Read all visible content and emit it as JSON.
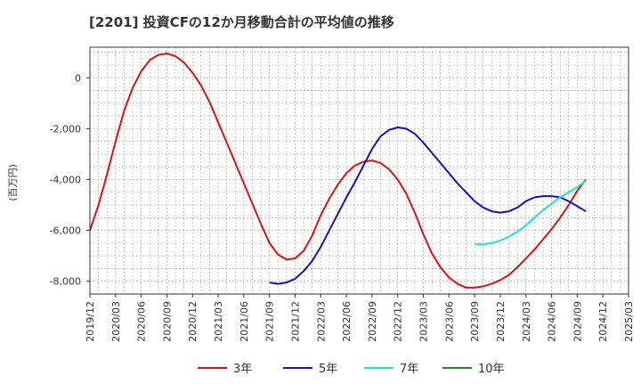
{
  "chart_data": {
    "type": "line",
    "title": "[2201]  投資CFの12か月移動合計の平均値の推移",
    "ylabel": "(百万円)",
    "xlabel": "",
    "ylim": [
      -8500,
      1200
    ],
    "yticks": [
      0,
      -2000,
      -4000,
      -6000,
      -8000
    ],
    "ytick_labels": [
      "0",
      "-2,000",
      "-4,000",
      "-6,000",
      "-8,000"
    ],
    "xlim": [
      "2019-12",
      "2025-03"
    ],
    "xtick_labels": [
      "2019/12",
      "2020/03",
      "2020/06",
      "2020/09",
      "2020/12",
      "2021/03",
      "2021/06",
      "2021/09",
      "2021/12",
      "2022/03",
      "2022/06",
      "2022/09",
      "2022/12",
      "2023/03",
      "2023/06",
      "2023/09",
      "2023/12",
      "2024/03",
      "2024/06",
      "2024/09",
      "2024/12",
      "2025/03"
    ],
    "grid": true,
    "legend": "bottom",
    "series": [
      {
        "name": "3年",
        "color": "#dd1111",
        "points": [
          [
            "2019-12",
            -6000
          ],
          [
            "2020-01",
            -5000
          ],
          [
            "2020-02",
            -3800
          ],
          [
            "2020-03",
            -2500
          ],
          [
            "2020-04",
            -1300
          ],
          [
            "2020-05",
            -400
          ],
          [
            "2020-06",
            250
          ],
          [
            "2020-07",
            700
          ],
          [
            "2020-08",
            900
          ],
          [
            "2020-09",
            950
          ],
          [
            "2020-10",
            850
          ],
          [
            "2020-11",
            600
          ],
          [
            "2020-12",
            200
          ],
          [
            "2021-01",
            -300
          ],
          [
            "2021-02",
            -950
          ],
          [
            "2021-03",
            -1750
          ],
          [
            "2021-04",
            -2550
          ],
          [
            "2021-05",
            -3350
          ],
          [
            "2021-06",
            -4150
          ],
          [
            "2021-07",
            -4950
          ],
          [
            "2021-08",
            -5750
          ],
          [
            "2021-09",
            -6500
          ],
          [
            "2021-10",
            -6950
          ],
          [
            "2021-11",
            -7150
          ],
          [
            "2021-12",
            -7100
          ],
          [
            "2022-01",
            -6800
          ],
          [
            "2022-02",
            -6200
          ],
          [
            "2022-03",
            -5400
          ],
          [
            "2022-04",
            -4750
          ],
          [
            "2022-05",
            -4200
          ],
          [
            "2022-06",
            -3750
          ],
          [
            "2022-07",
            -3450
          ],
          [
            "2022-08",
            -3300
          ],
          [
            "2022-09",
            -3250
          ],
          [
            "2022-10",
            -3350
          ],
          [
            "2022-11",
            -3600
          ],
          [
            "2022-12",
            -4000
          ],
          [
            "2023-01",
            -4550
          ],
          [
            "2023-02",
            -5300
          ],
          [
            "2023-03",
            -6150
          ],
          [
            "2023-04",
            -6900
          ],
          [
            "2023-05",
            -7450
          ],
          [
            "2023-06",
            -7850
          ],
          [
            "2023-07",
            -8100
          ],
          [
            "2023-08",
            -8250
          ],
          [
            "2023-09",
            -8250
          ],
          [
            "2023-10",
            -8200
          ],
          [
            "2023-11",
            -8100
          ],
          [
            "2023-12",
            -7950
          ],
          [
            "2024-01",
            -7750
          ],
          [
            "2024-02",
            -7450
          ],
          [
            "2024-03",
            -7100
          ],
          [
            "2024-04",
            -6750
          ],
          [
            "2024-05",
            -6350
          ],
          [
            "2024-06",
            -5950
          ],
          [
            "2024-07",
            -5500
          ],
          [
            "2024-08",
            -5000
          ],
          [
            "2024-09",
            -4450
          ],
          [
            "2024-10",
            -4000
          ]
        ]
      },
      {
        "name": "5年",
        "color": "#1111cc",
        "points": [
          [
            "2021-09",
            -8050
          ],
          [
            "2021-10",
            -8100
          ],
          [
            "2021-11",
            -8050
          ],
          [
            "2021-12",
            -7900
          ],
          [
            "2022-01",
            -7600
          ],
          [
            "2022-02",
            -7200
          ],
          [
            "2022-03",
            -6650
          ],
          [
            "2022-04",
            -6000
          ],
          [
            "2022-05",
            -5350
          ],
          [
            "2022-06",
            -4700
          ],
          [
            "2022-07",
            -4100
          ],
          [
            "2022-08",
            -3450
          ],
          [
            "2022-09",
            -2800
          ],
          [
            "2022-10",
            -2300
          ],
          [
            "2022-11",
            -2050
          ],
          [
            "2022-12",
            -1950
          ],
          [
            "2023-01",
            -2000
          ],
          [
            "2023-02",
            -2200
          ],
          [
            "2023-03",
            -2550
          ],
          [
            "2023-04",
            -2950
          ],
          [
            "2023-05",
            -3350
          ],
          [
            "2023-06",
            -3750
          ],
          [
            "2023-07",
            -4150
          ],
          [
            "2023-08",
            -4500
          ],
          [
            "2023-09",
            -4850
          ],
          [
            "2023-10",
            -5100
          ],
          [
            "2023-11",
            -5250
          ],
          [
            "2023-12",
            -5300
          ],
          [
            "2024-01",
            -5250
          ],
          [
            "2024-02",
            -5100
          ],
          [
            "2024-03",
            -4850
          ],
          [
            "2024-04",
            -4700
          ],
          [
            "2024-05",
            -4650
          ],
          [
            "2024-06",
            -4650
          ],
          [
            "2024-07",
            -4700
          ],
          [
            "2024-08",
            -4850
          ],
          [
            "2024-09",
            -5050
          ],
          [
            "2024-10",
            -5250
          ]
        ]
      },
      {
        "name": "7年",
        "color": "#22dddd",
        "points": [
          [
            "2023-09",
            -6550
          ],
          [
            "2023-10",
            -6550
          ],
          [
            "2023-11",
            -6500
          ],
          [
            "2023-12",
            -6400
          ],
          [
            "2024-01",
            -6250
          ],
          [
            "2024-02",
            -6050
          ],
          [
            "2024-03",
            -5800
          ],
          [
            "2024-04",
            -5500
          ],
          [
            "2024-05",
            -5200
          ],
          [
            "2024-06",
            -4950
          ],
          [
            "2024-07",
            -4700
          ],
          [
            "2024-08",
            -4500
          ],
          [
            "2024-09",
            -4300
          ],
          [
            "2024-10",
            -4050
          ]
        ]
      },
      {
        "name": "10年",
        "color": "#228822",
        "points": []
      }
    ]
  }
}
